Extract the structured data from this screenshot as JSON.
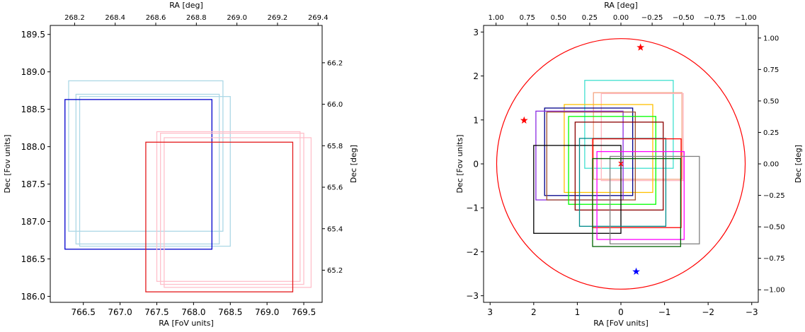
{
  "chart_data": [
    {
      "type": "rectangles",
      "xlabel": "RA [FoV units]",
      "ylabel": "Dec [Fov units]",
      "top_xlabel": "RA [deg]",
      "right_ylabel": "Dec [deg]",
      "xlim": [
        766.05,
        769.75
      ],
      "ylim": [
        185.92,
        189.62
      ],
      "top_xlim": [
        268.08,
        269.42
      ],
      "right_ylim": [
        65.045,
        66.38
      ],
      "xticks": [
        "766.5",
        "767.0",
        "767.5",
        "768.0",
        "768.5",
        "769.0",
        "769.5"
      ],
      "yticks": [
        "186.0",
        "186.5",
        "187.0",
        "187.5",
        "188.0",
        "188.5",
        "189.0",
        "189.5"
      ],
      "top_xticks": [
        "268.2",
        "268.4",
        "268.6",
        "268.8",
        "269.0",
        "269.2",
        "269.4"
      ],
      "right_yticks": [
        "65.2",
        "65.4",
        "65.6",
        "65.8",
        "66.0",
        "66.2"
      ],
      "rectangles": [
        {
          "x0": 766.3,
          "x1": 768.4,
          "y0": 186.87,
          "y1": 188.88,
          "color": "#add8e6"
        },
        {
          "x0": 766.4,
          "x1": 768.35,
          "y0": 186.7,
          "y1": 188.7,
          "color": "#add8e6"
        },
        {
          "x0": 766.45,
          "x1": 768.5,
          "y0": 186.67,
          "y1": 188.67,
          "color": "#add8e6"
        },
        {
          "x0": 766.25,
          "x1": 768.25,
          "y0": 186.63,
          "y1": 188.63,
          "color": "#0000cd"
        },
        {
          "x0": 767.5,
          "x1": 769.45,
          "y0": 186.2,
          "y1": 188.2,
          "color": "#ffc0cb"
        },
        {
          "x0": 767.55,
          "x1": 769.5,
          "y0": 186.16,
          "y1": 188.18,
          "color": "#ffc0cb"
        },
        {
          "x0": 767.6,
          "x1": 769.6,
          "y0": 186.12,
          "y1": 188.12,
          "color": "#ffc0cb"
        },
        {
          "x0": 767.35,
          "x1": 769.35,
          "y0": 186.06,
          "y1": 188.06,
          "color": "#e41a1c"
        }
      ]
    },
    {
      "type": "rectangles",
      "xlabel": "RA [FoV units]",
      "ylabel": "Dec [Fov units]",
      "top_xlabel": "RA [deg]",
      "right_ylabel": "Dec [deg]",
      "xlim": [
        3.15,
        -3.15
      ],
      "ylim": [
        -3.15,
        3.15
      ],
      "top_xlim": [
        1.1,
        -1.1
      ],
      "right_ylim": [
        -1.1,
        1.1
      ],
      "xticks": [
        "3",
        "2",
        "1",
        "0",
        "−1",
        "−2",
        "−3"
      ],
      "yticks": [
        "−3",
        "−2",
        "−1",
        "0",
        "1",
        "2",
        "3"
      ],
      "top_xticks": [
        "1.00",
        "0.75",
        "0.50",
        "0.25",
        "0.00",
        "−0.25",
        "−0.50",
        "−0.75",
        "−1.00"
      ],
      "right_yticks": [
        "−1.00",
        "−0.75",
        "−0.50",
        "−0.25",
        "0.00",
        "0.25",
        "0.50",
        "0.75",
        "1.00"
      ],
      "circle": {
        "cx": 0,
        "cy": 0,
        "r": 2.85,
        "color": "#ff0000"
      },
      "center_marker": {
        "x": 0,
        "y": 0,
        "color": "#ff0000",
        "symbol": "x"
      },
      "stars": [
        {
          "x": -0.45,
          "y": 2.65,
          "color": "#ff0000"
        },
        {
          "x": 2.22,
          "y": 0.99,
          "color": "#ff0000"
        },
        {
          "x": -0.35,
          "y": -2.45,
          "color": "#0000ff"
        }
      ],
      "rectangles": [
        {
          "x0": 0.83,
          "x1": -1.2,
          "y0": -0.1,
          "y1": 1.9,
          "color": "#40e0d0"
        },
        {
          "x0": 0.63,
          "x1": -1.4,
          "y0": -0.35,
          "y1": 1.62,
          "color": "#f4a582"
        },
        {
          "x0": 0.45,
          "x1": -1.43,
          "y0": -0.38,
          "y1": 1.6,
          "color": "#ffb6c1"
        },
        {
          "x0": 1.3,
          "x1": -0.73,
          "y0": -0.65,
          "y1": 1.35,
          "color": "#ffc000"
        },
        {
          "x0": 1.75,
          "x1": -0.27,
          "y0": -0.72,
          "y1": 1.27,
          "color": "#00008b"
        },
        {
          "x0": 1.95,
          "x1": -0.05,
          "y0": -0.82,
          "y1": 1.2,
          "color": "#8a2be2"
        },
        {
          "x0": 1.7,
          "x1": -0.33,
          "y0": -0.82,
          "y1": 1.18,
          "color": "#a0522d"
        },
        {
          "x0": 1.2,
          "x1": -0.8,
          "y0": -0.92,
          "y1": 1.08,
          "color": "#00ff00"
        },
        {
          "x0": 1.05,
          "x1": -0.97,
          "y0": -1.05,
          "y1": 0.95,
          "color": "#8b0000"
        },
        {
          "x0": 2.0,
          "x1": 0.0,
          "y0": -1.58,
          "y1": 0.42,
          "color": "#000000"
        },
        {
          "x0": 0.95,
          "x1": -1.03,
          "y0": -1.42,
          "y1": 0.58,
          "color": "#008b8b"
        },
        {
          "x0": 0.65,
          "x1": -1.38,
          "y0": -1.45,
          "y1": 0.57,
          "color": "#ff0000"
        },
        {
          "x0": 0.55,
          "x1": -1.45,
          "y0": -1.72,
          "y1": 0.28,
          "color": "#ff00ff"
        },
        {
          "x0": 0.25,
          "x1": -1.8,
          "y0": -1.82,
          "y1": 0.17,
          "color": "#808080"
        },
        {
          "x0": 0.65,
          "x1": -1.37,
          "y0": -1.88,
          "y1": 0.12,
          "color": "#006400"
        }
      ]
    }
  ]
}
